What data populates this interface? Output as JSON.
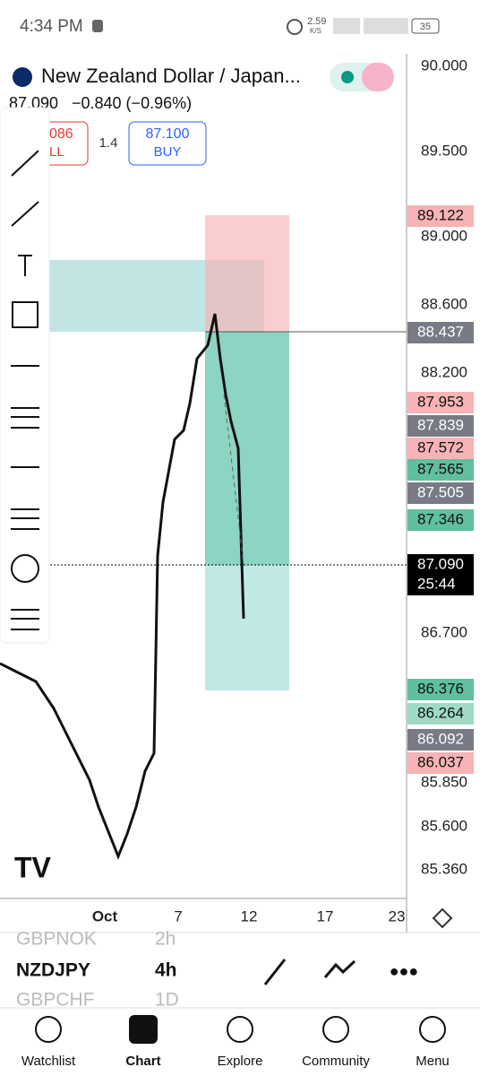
{
  "status_bar": {
    "time": "4:34 PM",
    "speed": "2.59",
    "speed_unit": "K/S",
    "battery": "35"
  },
  "header": {
    "symbol": "New Zealand Dollar / Japan...",
    "price": "87.090",
    "change": "−0.840 (−0.96%)"
  },
  "order_panel": {
    "sell_price": "086",
    "sell_label": "LL",
    "spread": "1.4",
    "buy_price": "87.100",
    "buy_label": "BUY"
  },
  "price_scale": [
    "90.000",
    "89.500",
    "89.000",
    "88.600",
    "88.200",
    "86.700",
    "85.850",
    "85.600",
    "85.360"
  ],
  "price_tags": [
    {
      "text": "89.122",
      "color": "#f7b3b5"
    },
    {
      "text": "88.437",
      "color": "#787b86"
    },
    {
      "text": "87.953",
      "color": "#f7b3b5"
    },
    {
      "text": "87.839",
      "color": "#787b86"
    },
    {
      "text": "87.572",
      "color": "#f7b3b5"
    },
    {
      "text": "87.565",
      "color": "#5fbf9f"
    },
    {
      "text": "87.505",
      "color": "#787b86"
    },
    {
      "text": "87.346",
      "color": "#5fbf9f"
    },
    {
      "text": "87.090",
      "color": "#000000"
    },
    {
      "text": "86.376",
      "color": "#5fbf9f"
    },
    {
      "text": "86.264",
      "color": "#9fd9c7"
    },
    {
      "text": "86.092",
      "color": "#787b86"
    },
    {
      "text": "86.037",
      "color": "#f7b3b5"
    }
  ],
  "countdown": "25:44",
  "time_axis": [
    "Oct",
    "7",
    "12",
    "17",
    "23"
  ],
  "watchlist_rows": [
    {
      "symbol": "GBPNOK",
      "interval": "2h"
    },
    {
      "symbol": "NZDJPY",
      "interval": "4h"
    },
    {
      "symbol": "GBPCHF",
      "interval": "1D"
    }
  ],
  "nav": [
    "Watchlist",
    "Chart",
    "Explore",
    "Community",
    "Menu"
  ]
}
